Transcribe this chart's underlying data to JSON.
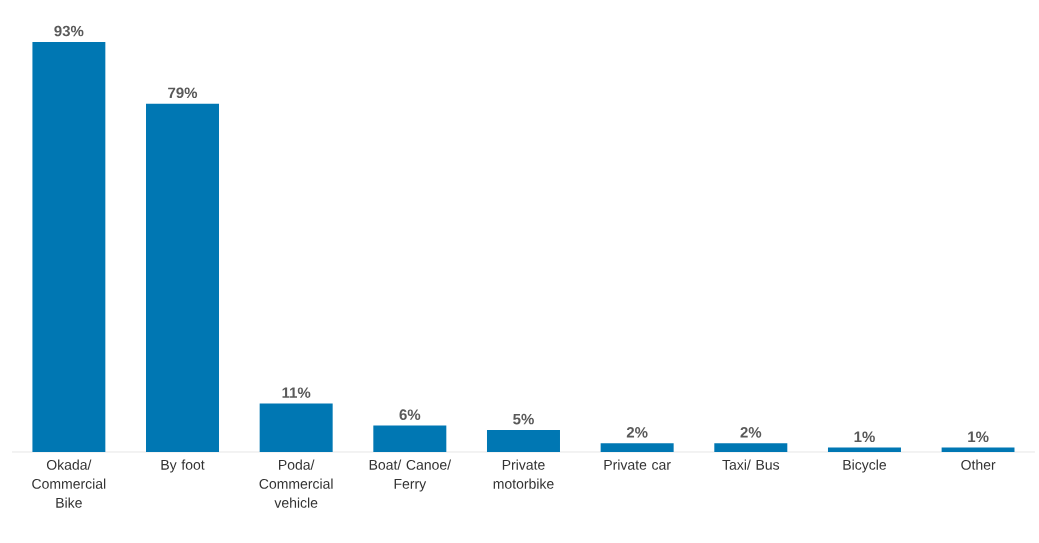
{
  "chart_data": {
    "type": "bar",
    "categories": [
      "Okada/ Commercial Bike",
      "By foot",
      "Poda/ Commercial vehicle",
      "Boat/ Canoe/ Ferry",
      "Private motorbike",
      "Private car",
      "Taxi/ Bus",
      "Bicycle",
      "Other"
    ],
    "values": [
      93,
      79,
      11,
      6,
      5,
      2,
      2,
      1,
      1
    ],
    "value_labels": [
      "93%",
      "79%",
      "11%",
      "6%",
      "5%",
      "2%",
      "2%",
      "1%",
      "1%"
    ],
    "color": "#0077b3"
  }
}
